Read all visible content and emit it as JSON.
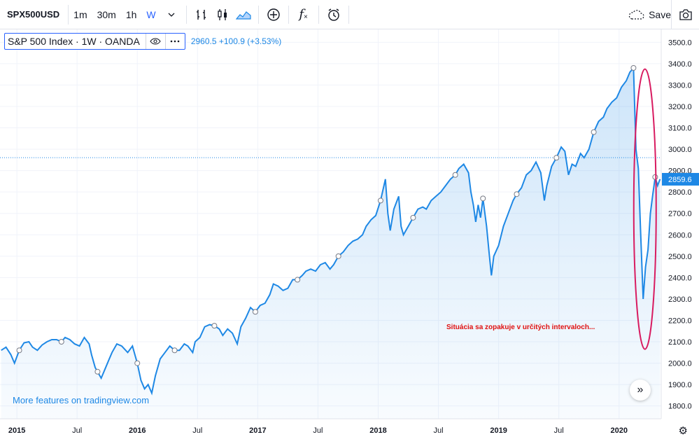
{
  "toolbar": {
    "symbol": "SPX500USD",
    "timeframes": [
      "1m",
      "30m",
      "1h",
      "W"
    ],
    "active_timeframe": "W",
    "fx_label": "f",
    "save_label": "Save"
  },
  "legend": {
    "title": "S&P 500 Index · 1W · OANDA",
    "values": "2960.5  +100.9 (+3.53%)"
  },
  "watermark": "More features on tradingview.com",
  "annotation": "Situácia sa zopakuje  v určitých intervaloch...",
  "colors": {
    "line": "#1e88e5",
    "accent": "#2962ff",
    "ellipse": "#d81b60",
    "annotation": "#e01010"
  },
  "chart_data": {
    "type": "area",
    "ylim": [
      1740,
      3560
    ],
    "y_ticks": [
      1800,
      1900,
      2000,
      2100,
      2200,
      2300,
      2400,
      2500,
      2600,
      2700,
      2800,
      2900,
      3000,
      3100,
      3200,
      3300,
      3400,
      3500
    ],
    "y_tick_labels": [
      "1800.0",
      "1900.0",
      "2000.0",
      "2100.0",
      "2200.0",
      "2300.0",
      "2400.0",
      "2500.0",
      "2600.0",
      "2700.0",
      "2800.0",
      "2900.0",
      "3000.0",
      "3100.0",
      "3200.0",
      "3300.0",
      "3400.0",
      "3500.0"
    ],
    "x_ticks": [
      {
        "label": "2015",
        "x": 2015.0
      },
      {
        "label": "Jul",
        "x": 2015.5
      },
      {
        "label": "2016",
        "x": 2016.0
      },
      {
        "label": "Jul",
        "x": 2016.5
      },
      {
        "label": "2017",
        "x": 2017.0
      },
      {
        "label": "Jul",
        "x": 2017.5
      },
      {
        "label": "2018",
        "x": 2018.0
      },
      {
        "label": "Jul",
        "x": 2018.5
      },
      {
        "label": "2019",
        "x": 2019.0
      },
      {
        "label": "Jul",
        "x": 2019.5
      },
      {
        "label": "2020",
        "x": 2020.0
      }
    ],
    "xlim": [
      2014.86,
      2020.35
    ],
    "last_price_label": "2859.6",
    "last_price": 2859.6,
    "ref_price": 2960.5,
    "series": [
      {
        "values": [
          [
            2014.87,
            2060
          ],
          [
            2014.91,
            2075
          ],
          [
            2014.95,
            2040
          ],
          [
            2014.98,
            2000
          ],
          [
            2015.02,
            2060
          ],
          [
            2015.06,
            2095
          ],
          [
            2015.1,
            2100
          ],
          [
            2015.13,
            2075
          ],
          [
            2015.17,
            2060
          ],
          [
            2015.21,
            2085
          ],
          [
            2015.25,
            2100
          ],
          [
            2015.29,
            2110
          ],
          [
            2015.33,
            2110
          ],
          [
            2015.37,
            2100
          ],
          [
            2015.4,
            2120
          ],
          [
            2015.44,
            2110
          ],
          [
            2015.48,
            2090
          ],
          [
            2015.52,
            2080
          ],
          [
            2015.56,
            2120
          ],
          [
            2015.6,
            2090
          ],
          [
            2015.62,
            2040
          ],
          [
            2015.65,
            1980
          ],
          [
            2015.67,
            1960
          ],
          [
            2015.7,
            1930
          ],
          [
            2015.73,
            1970
          ],
          [
            2015.76,
            2010
          ],
          [
            2015.79,
            2050
          ],
          [
            2015.83,
            2090
          ],
          [
            2015.87,
            2080
          ],
          [
            2015.92,
            2050
          ],
          [
            2015.96,
            2080
          ],
          [
            2016.0,
            2000
          ],
          [
            2016.03,
            1920
          ],
          [
            2016.06,
            1880
          ],
          [
            2016.09,
            1900
          ],
          [
            2016.12,
            1860
          ],
          [
            2016.15,
            1940
          ],
          [
            2016.19,
            2020
          ],
          [
            2016.23,
            2050
          ],
          [
            2016.27,
            2080
          ],
          [
            2016.31,
            2060
          ],
          [
            2016.35,
            2060
          ],
          [
            2016.39,
            2090
          ],
          [
            2016.42,
            2080
          ],
          [
            2016.46,
            2050
          ],
          [
            2016.48,
            2100
          ],
          [
            2016.52,
            2120
          ],
          [
            2016.56,
            2170
          ],
          [
            2016.6,
            2180
          ],
          [
            2016.64,
            2175
          ],
          [
            2016.68,
            2160
          ],
          [
            2016.71,
            2130
          ],
          [
            2016.75,
            2160
          ],
          [
            2016.79,
            2140
          ],
          [
            2016.83,
            2090
          ],
          [
            2016.86,
            2170
          ],
          [
            2016.9,
            2210
          ],
          [
            2016.94,
            2260
          ],
          [
            2016.98,
            2240
          ],
          [
            2017.02,
            2270
          ],
          [
            2017.06,
            2280
          ],
          [
            2017.1,
            2320
          ],
          [
            2017.13,
            2370
          ],
          [
            2017.17,
            2360
          ],
          [
            2017.21,
            2340
          ],
          [
            2017.25,
            2350
          ],
          [
            2017.29,
            2390
          ],
          [
            2017.33,
            2390
          ],
          [
            2017.37,
            2410
          ],
          [
            2017.4,
            2430
          ],
          [
            2017.44,
            2440
          ],
          [
            2017.48,
            2430
          ],
          [
            2017.52,
            2460
          ],
          [
            2017.56,
            2470
          ],
          [
            2017.6,
            2440
          ],
          [
            2017.63,
            2460
          ],
          [
            2017.67,
            2500
          ],
          [
            2017.71,
            2520
          ],
          [
            2017.75,
            2550
          ],
          [
            2017.79,
            2570
          ],
          [
            2017.83,
            2580
          ],
          [
            2017.87,
            2600
          ],
          [
            2017.9,
            2640
          ],
          [
            2017.94,
            2670
          ],
          [
            2017.98,
            2690
          ],
          [
            2018.02,
            2760
          ],
          [
            2018.06,
            2860
          ],
          [
            2018.08,
            2700
          ],
          [
            2018.1,
            2620
          ],
          [
            2018.13,
            2720
          ],
          [
            2018.17,
            2780
          ],
          [
            2018.19,
            2640
          ],
          [
            2018.21,
            2600
          ],
          [
            2018.25,
            2640
          ],
          [
            2018.29,
            2680
          ],
          [
            2018.33,
            2720
          ],
          [
            2018.37,
            2730
          ],
          [
            2018.4,
            2720
          ],
          [
            2018.44,
            2760
          ],
          [
            2018.48,
            2780
          ],
          [
            2018.52,
            2800
          ],
          [
            2018.56,
            2830
          ],
          [
            2018.6,
            2860
          ],
          [
            2018.64,
            2880
          ],
          [
            2018.67,
            2910
          ],
          [
            2018.71,
            2930
          ],
          [
            2018.75,
            2890
          ],
          [
            2018.77,
            2800
          ],
          [
            2018.79,
            2740
          ],
          [
            2018.81,
            2660
          ],
          [
            2018.83,
            2740
          ],
          [
            2018.85,
            2680
          ],
          [
            2018.87,
            2770
          ],
          [
            2018.9,
            2640
          ],
          [
            2018.92,
            2520
          ],
          [
            2018.94,
            2410
          ],
          [
            2018.96,
            2500
          ],
          [
            2019.0,
            2550
          ],
          [
            2019.04,
            2640
          ],
          [
            2019.08,
            2700
          ],
          [
            2019.12,
            2760
          ],
          [
            2019.15,
            2790
          ],
          [
            2019.19,
            2820
          ],
          [
            2019.23,
            2880
          ],
          [
            2019.27,
            2900
          ],
          [
            2019.31,
            2940
          ],
          [
            2019.35,
            2890
          ],
          [
            2019.38,
            2760
          ],
          [
            2019.4,
            2830
          ],
          [
            2019.44,
            2920
          ],
          [
            2019.48,
            2960
          ],
          [
            2019.52,
            3010
          ],
          [
            2019.55,
            2990
          ],
          [
            2019.58,
            2880
          ],
          [
            2019.61,
            2930
          ],
          [
            2019.64,
            2920
          ],
          [
            2019.68,
            2980
          ],
          [
            2019.71,
            2960
          ],
          [
            2019.75,
            3000
          ],
          [
            2019.79,
            3080
          ],
          [
            2019.83,
            3130
          ],
          [
            2019.87,
            3150
          ],
          [
            2019.9,
            3190
          ],
          [
            2019.94,
            3220
          ],
          [
            2019.98,
            3240
          ],
          [
            2020.02,
            3290
          ],
          [
            2020.06,
            3320
          ],
          [
            2020.09,
            3360
          ],
          [
            2020.12,
            3380
          ],
          [
            2020.14,
            3000
          ],
          [
            2020.16,
            2910
          ],
          [
            2020.18,
            2600
          ],
          [
            2020.2,
            2300
          ],
          [
            2020.22,
            2450
          ],
          [
            2020.24,
            2530
          ],
          [
            2020.26,
            2700
          ],
          [
            2020.28,
            2790
          ],
          [
            2020.3,
            2870
          ],
          [
            2020.32,
            2830
          ],
          [
            2020.34,
            2860
          ]
        ]
      }
    ]
  }
}
